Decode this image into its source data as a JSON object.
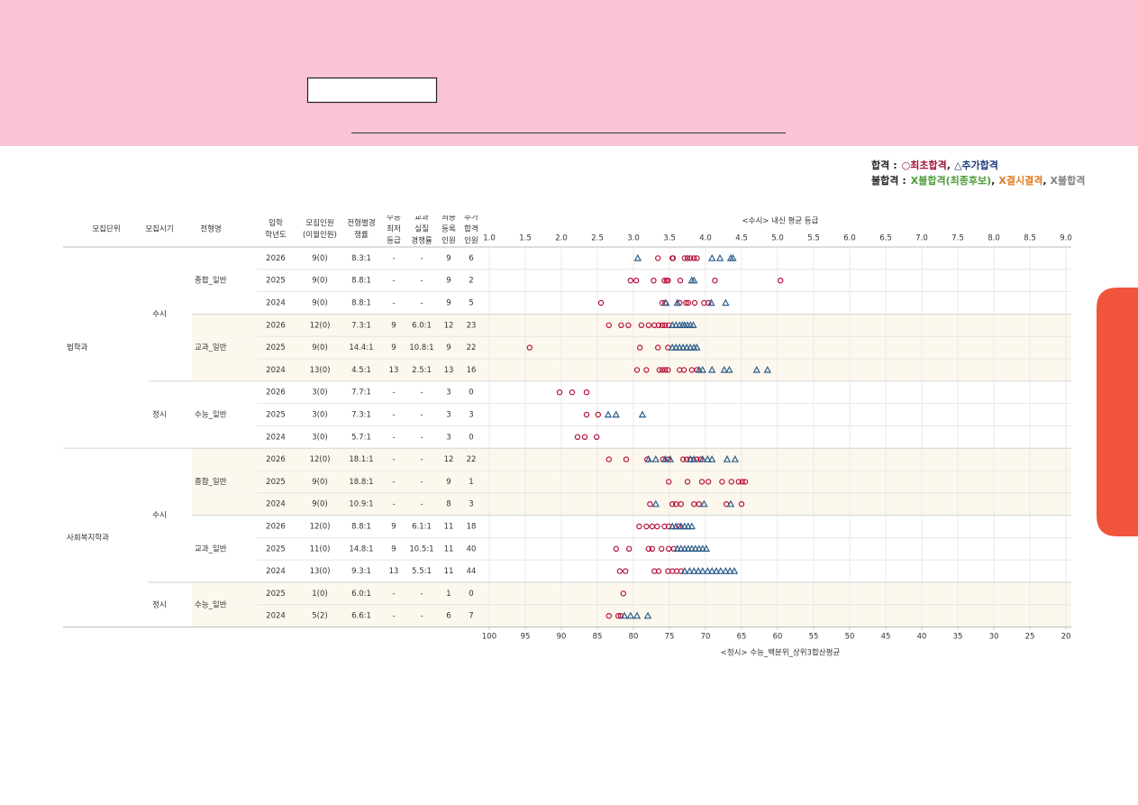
{
  "legend": {
    "pass": {
      "label": "합격",
      "colon": ":",
      "items": [
        {
          "symbol": "○",
          "name": "최초합격",
          "color": "#a3123a"
        },
        {
          "symbol": "△",
          "name": "추가합격",
          "color": "#1f3a7a"
        }
      ]
    },
    "fail": {
      "label": "불합격",
      "colon": ":",
      "items": [
        {
          "symbol": "X",
          "name": "불합격(최종후보)",
          "color": "#4e9a3a"
        },
        {
          "symbol": "X",
          "name": "결시결격",
          "color": "#e07a1f"
        },
        {
          "symbol": "X",
          "name": "불합격",
          "color": "#808080"
        }
      ]
    },
    "sep": ","
  },
  "headers": [
    [
      "모집단위"
    ],
    [
      "모집시기"
    ],
    [
      "전형명"
    ],
    [
      "입학",
      "학년도"
    ],
    [
      "모집인원",
      "(이월인원)"
    ],
    [
      "전형별경",
      "쟁률"
    ],
    [
      "수능",
      "최저",
      "등급"
    ],
    [
      "교과",
      "실질",
      "경쟁률"
    ],
    [
      "최종",
      "등록",
      "인원"
    ],
    [
      "추가",
      "합격",
      "인원"
    ]
  ],
  "grade_axis": {
    "label": "<수시> 내신 평균 등급",
    "xlim": [
      1,
      9
    ],
    "xticks": [
      {
        "value": 1,
        "label": "1.0"
      },
      1.5,
      {
        "value": 2,
        "label": "2.0"
      },
      2.5,
      {
        "value": 3,
        "label": "3.0"
      },
      3.5,
      {
        "value": 4,
        "label": "4.0"
      },
      4.5,
      {
        "value": 5,
        "label": "5.0"
      },
      5.5,
      {
        "value": 6,
        "label": "6.0"
      },
      6.5,
      {
        "value": 7,
        "label": "7.0"
      },
      7.5,
      {
        "value": 8,
        "label": "8.0"
      },
      8.5,
      {
        "value": 9,
        "label": "9.0"
      }
    ]
  },
  "percentile_axis": {
    "label": "<정시> 수능_백분위_상위3합산평균",
    "xlim": [
      100,
      20
    ],
    "xticks": [
      100,
      95,
      90,
      85,
      80,
      75,
      70,
      65,
      60,
      55,
      50,
      45,
      40,
      35,
      30,
      25,
      20
    ]
  },
  "first_color": "#b5123a",
  "added_color": "#2b5d8a",
  "units": [
    {
      "name": "법학과",
      "periods": [
        {
          "name": "수시",
          "axis": "grade",
          "tracks": [
            {
              "name": "종합_일반",
              "shaded": false,
              "rows": [
                {
                  "year": 2026,
                  "quota": "9(0)",
                  "ratio": "8.3:1",
                  "csat_min": "-",
                  "gpa_ratio": "-",
                  "enrolled": 9,
                  "extra": 6,
                  "first": [
                    3.34,
                    3.54,
                    3.55,
                    3.71,
                    3.75,
                    3.79,
                    3.84,
                    3.88
                  ],
                  "added": [
                    3.06,
                    4.09,
                    4.2,
                    4.35,
                    4.38
                  ]
                },
                {
                  "year": 2025,
                  "quota": "9(0)",
                  "ratio": "8.8:1",
                  "csat_min": "-",
                  "gpa_ratio": "-",
                  "enrolled": 9,
                  "extra": 2,
                  "first": [
                    2.96,
                    3.04,
                    3.28,
                    3.43,
                    3.46,
                    3.48,
                    3.65,
                    4.13,
                    5.04
                  ],
                  "added": [
                    3.81,
                    3.84
                  ]
                },
                {
                  "year": 2024,
                  "quota": "9(0)",
                  "ratio": "8.8:1",
                  "csat_min": "-",
                  "gpa_ratio": "-",
                  "enrolled": 9,
                  "extra": 5,
                  "first": [
                    2.55,
                    3.4,
                    3.44,
                    3.64,
                    3.73,
                    3.76,
                    3.85,
                    3.98,
                    4.04
                  ],
                  "added": [
                    3.45,
                    3.61,
                    4.08,
                    4.28
                  ]
                }
              ]
            },
            {
              "name": "교과_일반",
              "shaded": true,
              "rows": [
                {
                  "year": 2026,
                  "quota": "12(0)",
                  "ratio": "7.3:1",
                  "csat_min": "9",
                  "gpa_ratio": "6.0:1",
                  "enrolled": 12,
                  "extra": 23,
                  "first": [
                    2.66,
                    2.83,
                    2.93,
                    3.11,
                    3.21,
                    3.29,
                    3.35,
                    3.4,
                    3.44,
                    3.49
                  ],
                  "added": [
                    3.54,
                    3.59,
                    3.64,
                    3.68,
                    3.71,
                    3.75,
                    3.79,
                    3.83
                  ]
                },
                {
                  "year": 2025,
                  "quota": "9(0)",
                  "ratio": "14.4:1",
                  "csat_min": "9",
                  "gpa_ratio": "10.8:1",
                  "enrolled": 9,
                  "extra": 22,
                  "first": [
                    1.56,
                    3.09,
                    3.34,
                    3.48
                  ],
                  "added": [
                    3.54,
                    3.59,
                    3.64,
                    3.69,
                    3.74,
                    3.79,
                    3.84,
                    3.88
                  ]
                },
                {
                  "year": 2024,
                  "quota": "13(0)",
                  "ratio": "4.5:1",
                  "csat_min": "13",
                  "gpa_ratio": "2.5:1",
                  "enrolled": 13,
                  "extra": 16,
                  "first": [
                    3.05,
                    3.18,
                    3.36,
                    3.4,
                    3.44,
                    3.48,
                    3.64,
                    3.7,
                    3.81,
                    3.88
                  ],
                  "added": [
                    3.91,
                    3.96,
                    4.09,
                    4.26,
                    4.33,
                    4.71,
                    4.86
                  ]
                }
              ]
            }
          ]
        },
        {
          "name": "정시",
          "axis": "percentile",
          "tracks": [
            {
              "name": "수능_일반",
              "shaded": false,
              "rows": [
                {
                  "year": 2026,
                  "quota": "3(0)",
                  "ratio": "7.7:1",
                  "csat_min": "-",
                  "gpa_ratio": "-",
                  "enrolled": 3,
                  "extra": 0,
                  "first": [
                    90.25,
                    88.5,
                    86.5
                  ],
                  "added": []
                },
                {
                  "year": 2025,
                  "quota": "3(0)",
                  "ratio": "7.3:1",
                  "csat_min": "-",
                  "gpa_ratio": "-",
                  "enrolled": 3,
                  "extra": 3,
                  "first": [
                    86.5,
                    84.9
                  ],
                  "added": [
                    83.5,
                    82.4,
                    78.75
                  ]
                },
                {
                  "year": 2024,
                  "quota": "3(0)",
                  "ratio": "5.7:1",
                  "csat_min": "-",
                  "gpa_ratio": "-",
                  "enrolled": 3,
                  "extra": 0,
                  "first": [
                    87.75,
                    86.75,
                    85.1
                  ],
                  "added": []
                }
              ]
            }
          ]
        }
      ]
    },
    {
      "name": "사회복지학과",
      "periods": [
        {
          "name": "수시",
          "axis": "grade",
          "tracks": [
            {
              "name": "종합_일반",
              "shaded": true,
              "rows": [
                {
                  "year": 2026,
                  "quota": "12(0)",
                  "ratio": "18.1:1",
                  "csat_min": "-",
                  "gpa_ratio": "-",
                  "enrolled": 12,
                  "extra": 22,
                  "first": [
                    2.66,
                    2.9,
                    3.19,
                    3.41,
                    3.48,
                    3.69,
                    3.74,
                    3.79,
                    3.88,
                    3.93
                  ],
                  "added": [
                    3.21,
                    3.31,
                    3.44,
                    3.51,
                    3.79,
                    3.84,
                    3.96,
                    4.03,
                    4.09,
                    4.3,
                    4.41
                  ]
                },
                {
                  "year": 2025,
                  "quota": "9(0)",
                  "ratio": "18.8:1",
                  "csat_min": "-",
                  "gpa_ratio": "-",
                  "enrolled": 9,
                  "extra": 1,
                  "first": [
                    3.49,
                    3.75,
                    3.95,
                    4.04,
                    4.23,
                    4.36,
                    4.46,
                    4.51,
                    4.55
                  ],
                  "added": []
                },
                {
                  "year": 2024,
                  "quota": "9(0)",
                  "ratio": "10.9:1",
                  "csat_min": "-",
                  "gpa_ratio": "-",
                  "enrolled": 8,
                  "extra": 3,
                  "first": [
                    3.23,
                    3.54,
                    3.59,
                    3.66,
                    3.84,
                    3.91,
                    4.29,
                    4.5
                  ],
                  "added": [
                    3.31,
                    3.98,
                    4.35
                  ]
                }
              ]
            },
            {
              "name": "교과_일반",
              "shaded": false,
              "rows": [
                {
                  "year": 2026,
                  "quota": "12(0)",
                  "ratio": "8.8:1",
                  "csat_min": "9",
                  "gpa_ratio": "6.1:1",
                  "enrolled": 11,
                  "extra": 18,
                  "first": [
                    3.08,
                    3.18,
                    3.26,
                    3.33,
                    3.43,
                    3.49,
                    3.63
                  ],
                  "added": [
                    3.54,
                    3.59,
                    3.66,
                    3.71,
                    3.76,
                    3.81
                  ]
                },
                {
                  "year": 2025,
                  "quota": "11(0)",
                  "ratio": "14.8:1",
                  "csat_min": "9",
                  "gpa_ratio": "10.5:1",
                  "enrolled": 11,
                  "extra": 40,
                  "first": [
                    2.76,
                    2.94,
                    3.21,
                    3.26,
                    3.39,
                    3.49,
                    3.56
                  ],
                  "added": [
                    3.61,
                    3.66,
                    3.71,
                    3.76,
                    3.81,
                    3.86,
                    3.91,
                    3.96,
                    4.01
                  ]
                },
                {
                  "year": 2024,
                  "quota": "13(0)",
                  "ratio": "9.3:1",
                  "csat_min": "13",
                  "gpa_ratio": "5.5:1",
                  "enrolled": 11,
                  "extra": 44,
                  "first": [
                    2.81,
                    2.89,
                    3.29,
                    3.35,
                    3.48,
                    3.54,
                    3.6,
                    3.66
                  ],
                  "added": [
                    3.71,
                    3.78,
                    3.84,
                    3.9,
                    3.96,
                    4.03,
                    4.09,
                    4.15,
                    4.21,
                    4.28,
                    4.34,
                    4.4
                  ]
                }
              ]
            }
          ]
        },
        {
          "name": "정시",
          "axis": "percentile",
          "tracks": [
            {
              "name": "수능_일반",
              "shaded": true,
              "rows": [
                {
                  "year": 2025,
                  "quota": "1(0)",
                  "ratio": "6.0:1",
                  "csat_min": "-",
                  "gpa_ratio": "-",
                  "enrolled": 1,
                  "extra": 0,
                  "first": [
                    81.4
                  ],
                  "added": []
                },
                {
                  "year": 2024,
                  "quota": "5(2)",
                  "ratio": "6.6:1",
                  "csat_min": "-",
                  "gpa_ratio": "-",
                  "enrolled": 6,
                  "extra": 7,
                  "first": [
                    83.4,
                    82.1,
                    81.75
                  ],
                  "added": [
                    81.25,
                    80.4,
                    79.5,
                    78
                  ]
                }
              ]
            }
          ]
        }
      ]
    }
  ]
}
